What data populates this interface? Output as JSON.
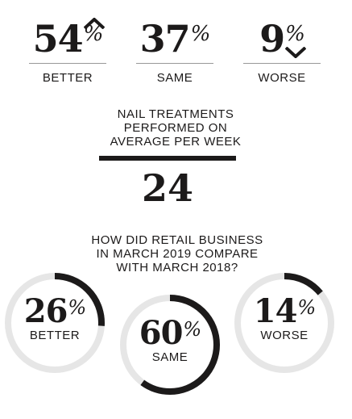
{
  "stats": [
    {
      "value": "54",
      "unit": "%",
      "label": "BETTER",
      "trend": "up-chevron-icon"
    },
    {
      "value": "37",
      "unit": "%",
      "label": "SAME"
    },
    {
      "value": "9",
      "unit": "%",
      "label": "WORSE",
      "trend": "down-chevron-icon"
    }
  ],
  "nail": {
    "title_lines": [
      "NAIL TREATMENTS",
      "PERFORMED ON",
      "AVERAGE PER WEEK"
    ],
    "value": "24"
  },
  "retail": {
    "title_lines": [
      "HOW DID RETAIL BUSINESS",
      "IN MARCH 2019 COMPARE",
      "WITH MARCH 2018?"
    ],
    "items": [
      {
        "value": "26",
        "unit": "%",
        "label": "BETTER",
        "fraction": 0.26
      },
      {
        "value": "60",
        "unit": "%",
        "label": "SAME",
        "fraction": 0.6
      },
      {
        "value": "14",
        "unit": "%",
        "label": "WORSE",
        "fraction": 0.14
      }
    ]
  },
  "colors": {
    "ink": "#1c1a1a",
    "track": "#e6e6e6",
    "rule": "#999999"
  }
}
